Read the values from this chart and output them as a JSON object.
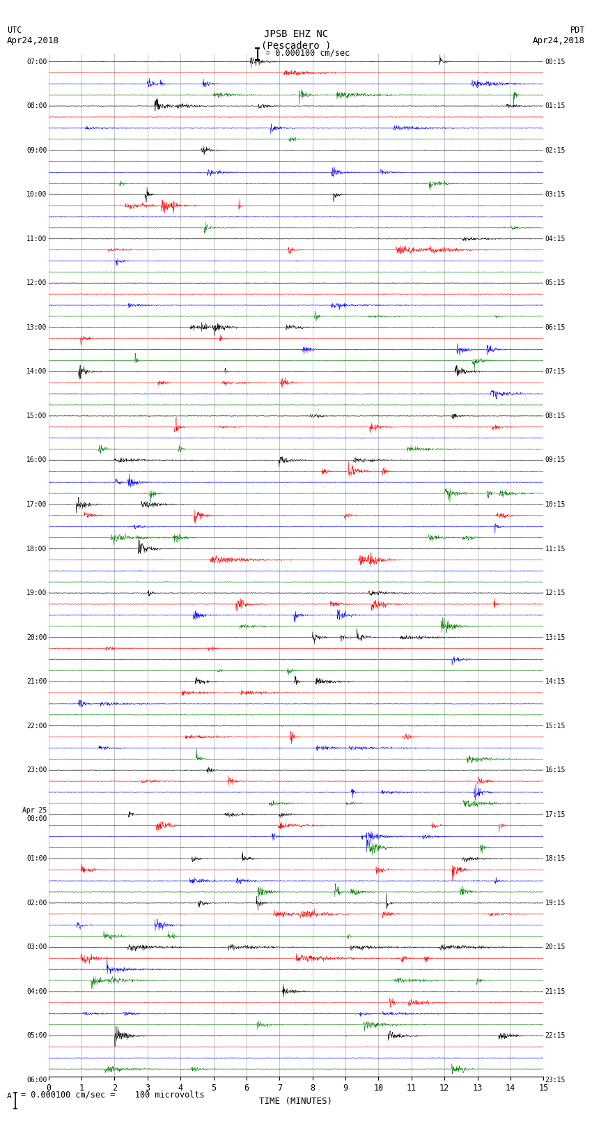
{
  "title_line1": "JPSB EHZ NC",
  "title_line2": "(Pescadero )",
  "scale_label": "= 0.000100 cm/sec",
  "bottom_label": "= 0.000100 cm/sec =    100 microvolts",
  "xlabel": "TIME (MINUTES)",
  "utc_label1": "UTC",
  "utc_label2": "Apr24,2018",
  "pdt_label1": "PDT",
  "pdt_label2": "Apr24,2018",
  "left_times": [
    "07:00",
    "",
    "",
    "",
    "08:00",
    "",
    "",
    "",
    "09:00",
    "",
    "",
    "",
    "10:00",
    "",
    "",
    "",
    "11:00",
    "",
    "",
    "",
    "12:00",
    "",
    "",
    "",
    "13:00",
    "",
    "",
    "",
    "14:00",
    "",
    "",
    "",
    "15:00",
    "",
    "",
    "",
    "16:00",
    "",
    "",
    "",
    "17:00",
    "",
    "",
    "",
    "18:00",
    "",
    "",
    "",
    "19:00",
    "",
    "",
    "",
    "20:00",
    "",
    "",
    "",
    "21:00",
    "",
    "",
    "",
    "22:00",
    "",
    "",
    "",
    "23:00",
    "",
    "",
    "",
    "Apr 25\n00:00",
    "",
    "",
    "",
    "01:00",
    "",
    "",
    "",
    "02:00",
    "",
    "",
    "",
    "03:00",
    "",
    "",
    "",
    "04:00",
    "",
    "",
    "",
    "05:00",
    "",
    "",
    "",
    "06:00",
    "",
    ""
  ],
  "right_times": [
    "00:15",
    "",
    "",
    "",
    "01:15",
    "",
    "",
    "",
    "02:15",
    "",
    "",
    "",
    "03:15",
    "",
    "",
    "",
    "04:15",
    "",
    "",
    "",
    "05:15",
    "",
    "",
    "",
    "06:15",
    "",
    "",
    "",
    "07:15",
    "",
    "",
    "",
    "08:15",
    "",
    "",
    "",
    "09:15",
    "",
    "",
    "",
    "10:15",
    "",
    "",
    "",
    "11:15",
    "",
    "",
    "",
    "12:15",
    "",
    "",
    "",
    "13:15",
    "",
    "",
    "",
    "14:15",
    "",
    "",
    "",
    "15:15",
    "",
    "",
    "",
    "16:15",
    "",
    "",
    "",
    "17:15",
    "",
    "",
    "",
    "18:15",
    "",
    "",
    "",
    "19:15",
    "",
    "",
    "",
    "20:15",
    "",
    "",
    "",
    "21:15",
    "",
    "",
    "",
    "22:15",
    "",
    "",
    "",
    "23:15",
    "",
    ""
  ],
  "n_traces": 92,
  "trace_colors_cycle": [
    "black",
    "red",
    "blue",
    "green"
  ],
  "minutes": 15,
  "bg_color": "white",
  "grid_color": "#888888",
  "seed": 42
}
